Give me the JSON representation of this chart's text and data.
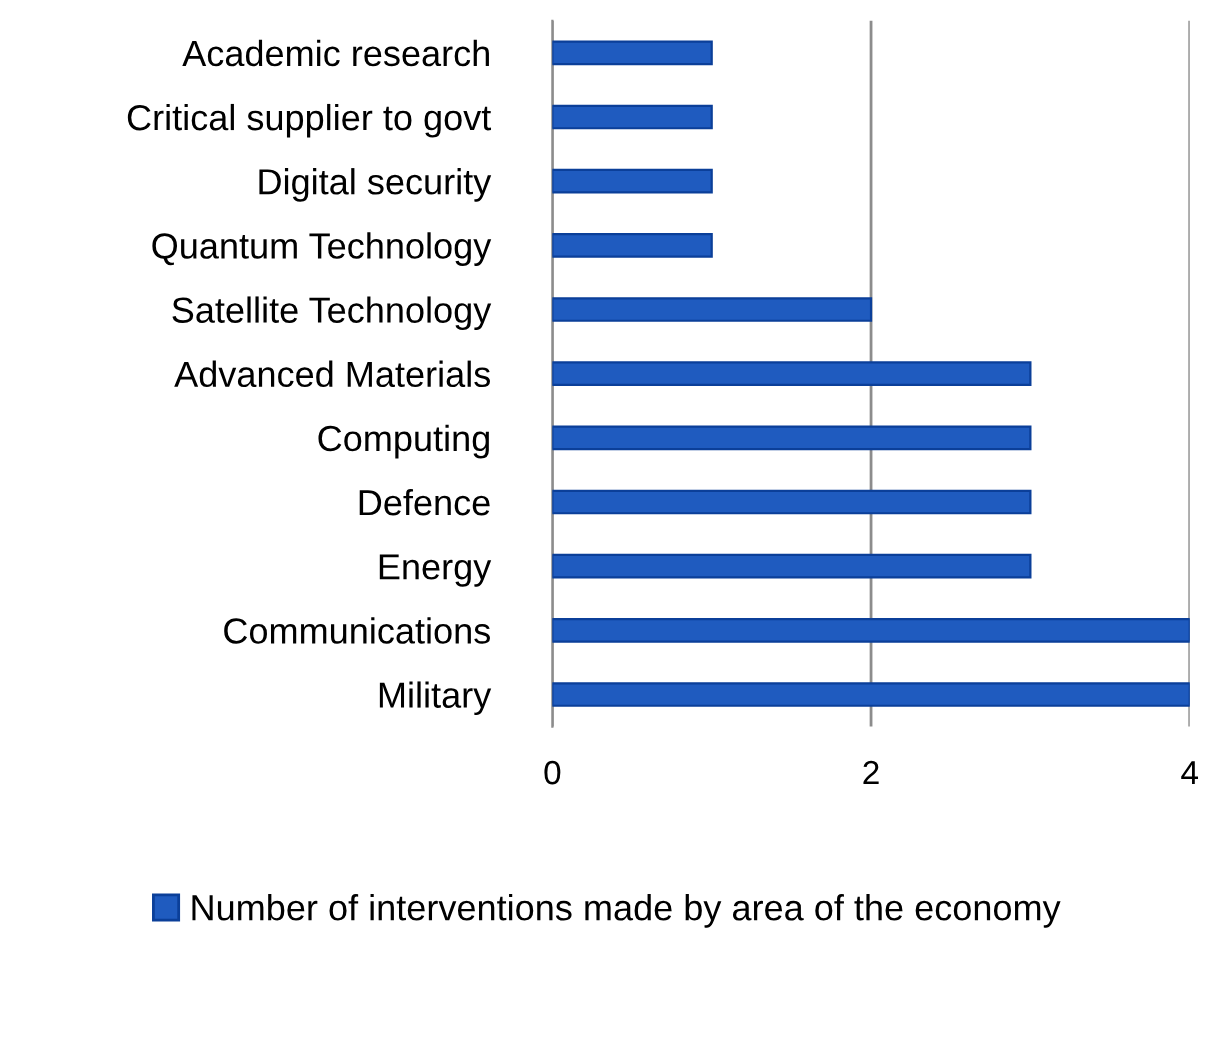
{
  "chart_data": {
    "type": "bar",
    "orientation": "horizontal",
    "categories": [
      "Academic research",
      "Critical supplier to govt",
      "Digital security",
      "Quantum Technology",
      "Satellite Technology",
      "Advanced Materials",
      "Computing",
      "Defence",
      "Energy",
      "Communications",
      "Military"
    ],
    "series": [
      {
        "name": "Number of interventions made by area of the economy",
        "color": "#1f5bbf",
        "values": [
          1,
          1,
          1,
          1,
          2,
          3,
          3,
          3,
          3,
          4,
          4
        ]
      }
    ],
    "xlim": [
      0,
      4
    ],
    "xticks": [
      0,
      2,
      4
    ],
    "grid": "x",
    "legend": "bottom"
  }
}
